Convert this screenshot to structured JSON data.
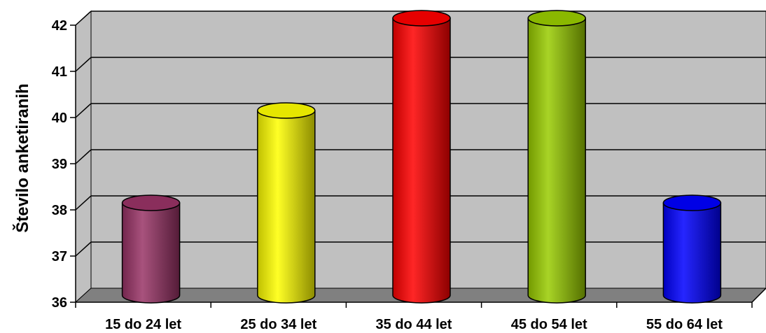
{
  "chart_data": {
    "type": "bar",
    "bar_shape": "cylinder",
    "view": "3d",
    "ylabel": "Število anketiranih",
    "xlabel": "",
    "categories": [
      "15 do 24 let",
      "25 do 34 let",
      "35 do 44 let",
      "45 do 54 let",
      "55 do 64 let"
    ],
    "values": [
      38,
      40,
      42,
      42,
      38
    ],
    "colors": [
      "#993366",
      "#FFFF00",
      "#FF0000",
      "#99CC00",
      "#0000FF"
    ],
    "ylim": [
      36,
      42
    ],
    "yticks": [
      "36",
      "37",
      "38",
      "39",
      "40",
      "41",
      "42"
    ],
    "grid": true,
    "wall_color": "#C0C0C0",
    "floor_color": "#808080",
    "legend": "none"
  }
}
